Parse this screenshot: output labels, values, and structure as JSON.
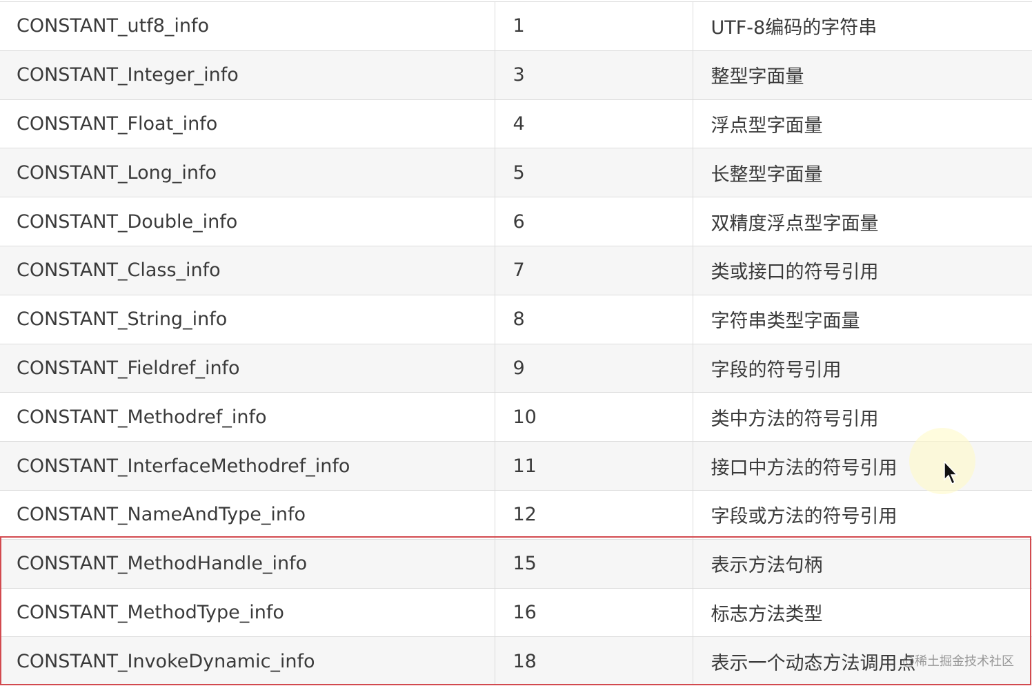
{
  "rows": [
    {
      "name": "CONSTANT_utf8_info",
      "tag": "1",
      "desc": "UTF-8编码的字符串"
    },
    {
      "name": "CONSTANT_Integer_info",
      "tag": "3",
      "desc": "整型字面量"
    },
    {
      "name": "CONSTANT_Float_info",
      "tag": "4",
      "desc": "浮点型字面量"
    },
    {
      "name": "CONSTANT_Long_info",
      "tag": "5",
      "desc": "长整型字面量"
    },
    {
      "name": "CONSTANT_Double_info",
      "tag": "6",
      "desc": "双精度浮点型字面量"
    },
    {
      "name": "CONSTANT_Class_info",
      "tag": "7",
      "desc": "类或接口的符号引用"
    },
    {
      "name": "CONSTANT_String_info",
      "tag": "8",
      "desc": "字符串类型字面量"
    },
    {
      "name": "CONSTANT_Fieldref_info",
      "tag": "9",
      "desc": "字段的符号引用"
    },
    {
      "name": "CONSTANT_Methodref_info",
      "tag": "10",
      "desc": "类中方法的符号引用"
    },
    {
      "name": "CONSTANT_InterfaceMethodref_info",
      "tag": "11",
      "desc": "接口中方法的符号引用"
    },
    {
      "name": "CONSTANT_NameAndType_info",
      "tag": "12",
      "desc": "字段或方法的符号引用"
    },
    {
      "name": "CONSTANT_MethodHandle_info",
      "tag": "15",
      "desc": "表示方法句柄"
    },
    {
      "name": "CONSTANT_MethodType_info",
      "tag": "16",
      "desc": "标志方法类型"
    },
    {
      "name": "CONSTANT_InvokeDynamic_info",
      "tag": "18",
      "desc": "表示一个动态方法调用点"
    }
  ],
  "highlight_color": "#d24a4f",
  "watermark": "@稀土掘金技术社区",
  "cursor_icon": "arrow-pointer-icon"
}
